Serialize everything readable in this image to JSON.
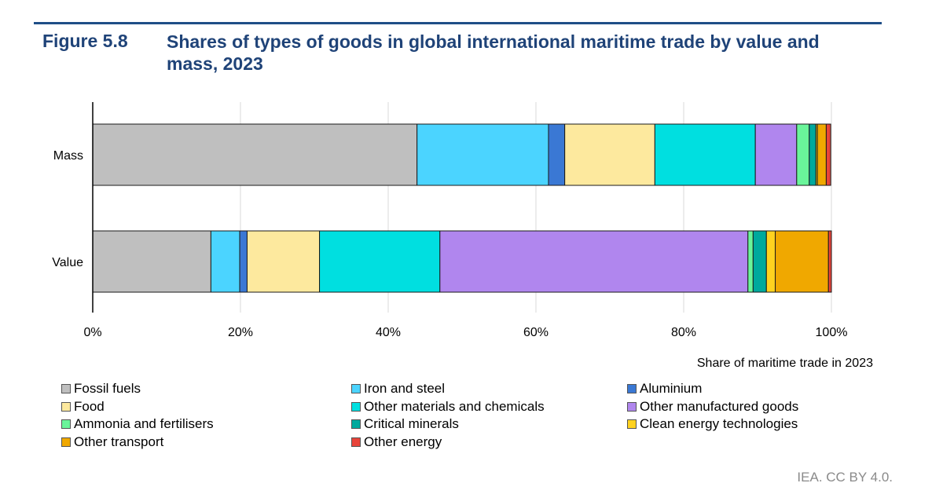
{
  "header": {
    "figure_number": "Figure 5.8",
    "title": "Shares of types of goods in global international maritime trade by value and mass, 2023"
  },
  "chart_data": {
    "type": "bar",
    "orientation": "horizontal",
    "stacked": true,
    "title": "Shares of types of goods in global international maritime trade by value and mass, 2023",
    "xlabel": "Share of maritime trade in 2023",
    "ylabel": "",
    "categories": [
      "Mass",
      "Value"
    ],
    "xlim": [
      0,
      100
    ],
    "x_ticks": [
      "0%",
      "20%",
      "40%",
      "60%",
      "80%",
      "100%"
    ],
    "x_tick_values": [
      0,
      20,
      40,
      60,
      80,
      100
    ],
    "grid": "vertical",
    "legend_position": "bottom",
    "unit": "%",
    "series": [
      {
        "name": "Fossil fuels",
        "color": "#bfbfbf",
        "values": [
          43.9,
          16.0
        ]
      },
      {
        "name": "Iron and steel",
        "color": "#4bd4ff",
        "values": [
          17.8,
          3.9
        ]
      },
      {
        "name": "Aluminium",
        "color": "#3a78d4",
        "values": [
          2.2,
          1.0
        ]
      },
      {
        "name": "Food",
        "color": "#fde99e",
        "values": [
          12.2,
          9.8
        ]
      },
      {
        "name": "Other materials and chemicals",
        "color": "#00dfe0",
        "values": [
          13.6,
          16.3
        ]
      },
      {
        "name": "Other manufactured goods",
        "color": "#b086ee",
        "values": [
          5.6,
          41.7
        ]
      },
      {
        "name": "Ammonia and fertilisers",
        "color": "#6af59a",
        "values": [
          1.7,
          0.7
        ]
      },
      {
        "name": "Critical minerals",
        "color": "#00a99d",
        "values": [
          0.9,
          1.8
        ]
      },
      {
        "name": "Clean energy technologies",
        "color": "#ffd21f",
        "values": [
          0.2,
          1.2
        ]
      },
      {
        "name": "Other transport",
        "color": "#f0a800",
        "values": [
          1.2,
          7.2
        ]
      },
      {
        "name": "Other energy",
        "color": "#e8443a",
        "values": [
          0.6,
          0.4
        ]
      }
    ]
  },
  "credit": "IEA. CC BY 4.0."
}
